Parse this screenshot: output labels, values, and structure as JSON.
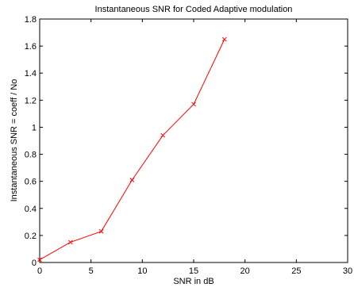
{
  "chart_data": {
    "type": "line",
    "title": "Instantaneous SNR for Coded Adaptive modulation",
    "xlabel": "SNR in dB",
    "ylabel": "Instantaneous SNR = coeff / No",
    "xlim": [
      0,
      30
    ],
    "ylim": [
      0,
      1.8
    ],
    "xticks": [
      "0",
      "5",
      "10",
      "15",
      "20",
      "25",
      "30"
    ],
    "yticks": [
      "0",
      "0.2",
      "0.4",
      "0.6",
      "0.8",
      "1",
      "1.2",
      "1.4",
      "1.6",
      "1.8"
    ],
    "grid": false,
    "legend": "none",
    "series": [
      {
        "color": "#ff0000",
        "marker": "x",
        "x": [
          0,
          3,
          6,
          9,
          12,
          15,
          18
        ],
        "y": [
          0.02,
          0.15,
          0.23,
          0.61,
          0.94,
          1.17,
          1.65
        ]
      }
    ]
  }
}
